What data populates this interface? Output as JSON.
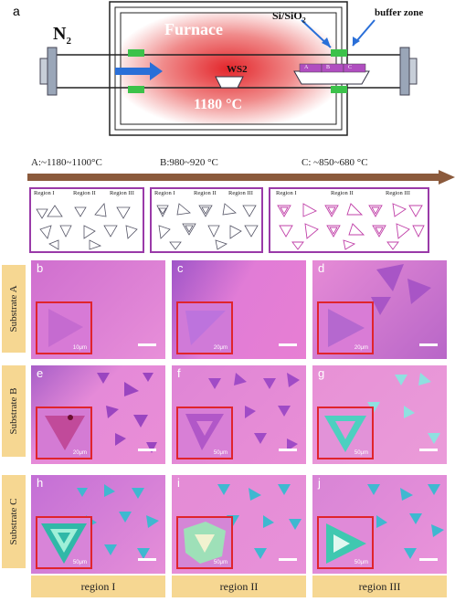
{
  "panel_a": {
    "letter": "a",
    "gas": "N",
    "gas_sub": "2",
    "furnace": "Furnace",
    "precursor": "WS2",
    "temperature": "1180 °C",
    "substrate_label": "Si/SiO",
    "substrate_sub": "2",
    "buffer": "buffer zone",
    "boat_slots": [
      "A",
      "B",
      "C"
    ]
  },
  "temperature_ranges": [
    "A:~1180~1100°C",
    "B:980~920 °C",
    "C: ~850~680 °C"
  ],
  "region_labels": [
    "Region I",
    "Region II",
    "Region III"
  ],
  "rows": [
    "Substrate A",
    "Substrate B",
    "Substrate C"
  ],
  "columns": [
    "region I",
    "region II",
    "region III"
  ],
  "panels": [
    {
      "letter": "b",
      "scale": "10μm"
    },
    {
      "letter": "c",
      "scale": "20μm"
    },
    {
      "letter": "d",
      "scale": "20μm"
    },
    {
      "letter": "e",
      "scale": "20μm"
    },
    {
      "letter": "f",
      "scale": "50μm"
    },
    {
      "letter": "g",
      "scale": "50μm"
    },
    {
      "letter": "h",
      "scale": "50μm"
    },
    {
      "letter": "i",
      "scale": "50μm"
    },
    {
      "letter": "j",
      "scale": "50μm"
    }
  ],
  "colors": {
    "furnace_red": "#e3262b",
    "frame_purple": "#9a3aa8",
    "label_bg": "#f6d792",
    "inset_red": "#e0242c",
    "micrograph_pink": "#e07ad4"
  }
}
